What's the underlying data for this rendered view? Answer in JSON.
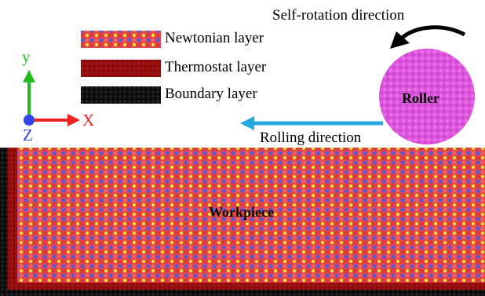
{
  "legend": {
    "items": [
      {
        "label": "Newtonian layer",
        "color": "#e05050"
      },
      {
        "label": "Thermostat layer",
        "color": "#8b0000"
      },
      {
        "label": "Boundary layer",
        "color": "#111111"
      }
    ]
  },
  "axes": {
    "y": "y",
    "x": "X",
    "z": "Z"
  },
  "annotations": {
    "self_rotation": "Self-rotation direction",
    "rolling": "Rolling direction"
  },
  "roller": {
    "label": "Roller",
    "color": "#dd55dd"
  },
  "workpiece": {
    "label": "Workpiece"
  },
  "colors": {
    "newtonian_red": "#e64646",
    "newtonian_blue": "#5a5ad8",
    "newtonian_yellow": "#f2e83a",
    "thermostat": "#8b0a0a",
    "boundary": "#0a0a0a",
    "rolling_arrow": "#29a8e0",
    "axis_y": "#22bb22",
    "axis_x": "#ee2222",
    "axis_z": "#3344ee"
  }
}
